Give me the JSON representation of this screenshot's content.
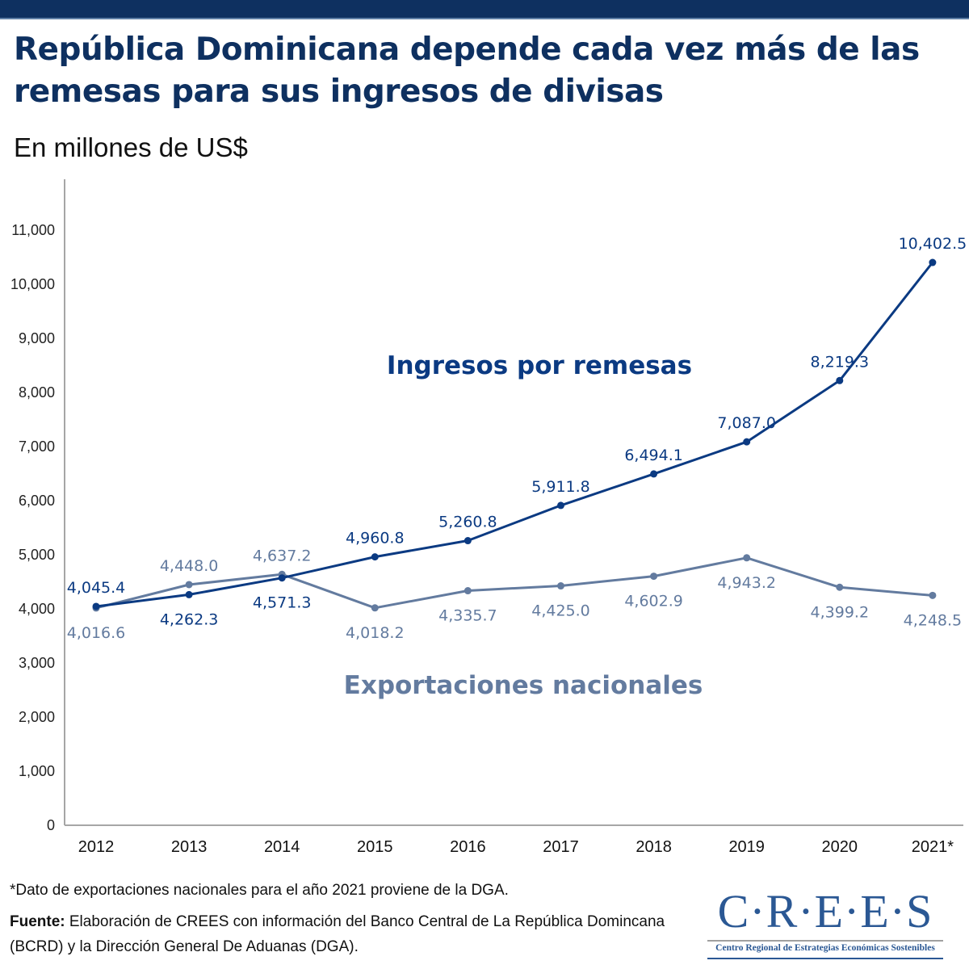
{
  "header": {
    "title": "República Dominicana depende cada vez más de las remesas para sus ingresos de divisas",
    "subtitle": "En millones de US$"
  },
  "colors": {
    "top_bar": "#0e3060",
    "title": "#0e3060",
    "remesas": "#0b3a82",
    "exportaciones": "#637b9f",
    "axis": "#a6a6a6"
  },
  "chart_data": {
    "type": "line",
    "title": "República Dominicana depende cada vez más de las remesas para sus ingresos de divisas",
    "subtitle": "En millones de US$",
    "xlabel": "",
    "ylabel": "",
    "ylim": [
      0,
      11900
    ],
    "yticks": [
      0,
      1000,
      2000,
      3000,
      4000,
      5000,
      6000,
      7000,
      8000,
      9000,
      10000,
      11000
    ],
    "ytick_labels": [
      "0",
      "1,000",
      "2,000",
      "3,000",
      "4,000",
      "5,000",
      "6,000",
      "7,000",
      "8,000",
      "9,000",
      "10,000",
      "11,000"
    ],
    "grid": false,
    "legend": "inline-labels",
    "categories": [
      "2012",
      "2013",
      "2014",
      "2015",
      "2016",
      "2017",
      "2018",
      "2019",
      "2020",
      "2021*"
    ],
    "series": [
      {
        "name": "Ingresos por remesas",
        "color": "#0b3a82",
        "values": [
          4045.4,
          4262.3,
          4571.3,
          4960.8,
          5260.8,
          5911.8,
          6494.1,
          7087.0,
          8219.3,
          10402.5
        ],
        "labels": [
          "4,045.4",
          "4,262.3",
          "4,571.3",
          "4,960.8",
          "5,260.8",
          "5,911.8",
          "6,494.1",
          "7,087.0",
          "8,219.3",
          "10,402.5"
        ],
        "label_positions": [
          "above",
          "below",
          "below",
          "above",
          "above",
          "above",
          "above",
          "above",
          "above",
          "above"
        ]
      },
      {
        "name": "Exportaciones nacionales",
        "color": "#637b9f",
        "values": [
          4016.6,
          4448.0,
          4637.2,
          4018.2,
          4335.7,
          4425.0,
          4602.9,
          4943.2,
          4399.2,
          4248.5
        ],
        "labels": [
          "4,016.6",
          "4,448.0",
          "4,637.2",
          "4,018.2",
          "4,335.7",
          "4,425.0",
          "4,602.9",
          "4,943.2",
          "4,399.2",
          "4,248.5"
        ],
        "label_positions": [
          "below",
          "above",
          "above",
          "below",
          "below",
          "below",
          "below",
          "below",
          "below",
          "below"
        ]
      }
    ]
  },
  "footer": {
    "footnote": "*Dato de exportaciones nacionales para el año 2021 proviene de la DGA.",
    "source_label": "Fuente:",
    "source_text": " Elaboración de CREES con información del Banco Central de La República Domincana (BCRD) y la Dirección General De Aduanas (DGA)."
  },
  "logo": {
    "main": "C·R·E·E·S",
    "subtitle": "Centro Regional de Estrategias Económicas Sostenibles"
  }
}
